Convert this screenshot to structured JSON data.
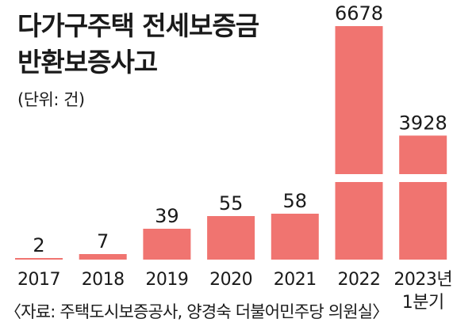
{
  "title_lines": [
    "다가구주택 전세보증금",
    "반환보증사고"
  ],
  "unit_label": "(단위: 건)",
  "source": "〈자료: 주택도시보증공사, 양경숙 더불어민주당 의원실〉",
  "colors": {
    "bar": "#f07470",
    "text": "#1a1a1a",
    "axis": "#1a1a1a"
  },
  "chart_data": {
    "type": "bar",
    "title": "다가구주택 전세보증금 반환보증사고",
    "categories": [
      "2017",
      "2018",
      "2019",
      "2020",
      "2021",
      "2022",
      "2023년 1분기"
    ],
    "values": [
      2,
      7,
      39,
      55,
      58,
      6678,
      3928
    ],
    "value_labels": [
      "2",
      "7",
      "39",
      "55",
      "58",
      "6678",
      "3928"
    ],
    "unit": "건",
    "axis_break": {
      "from": 100,
      "to": 3000
    },
    "grid": false,
    "legend": "none"
  }
}
